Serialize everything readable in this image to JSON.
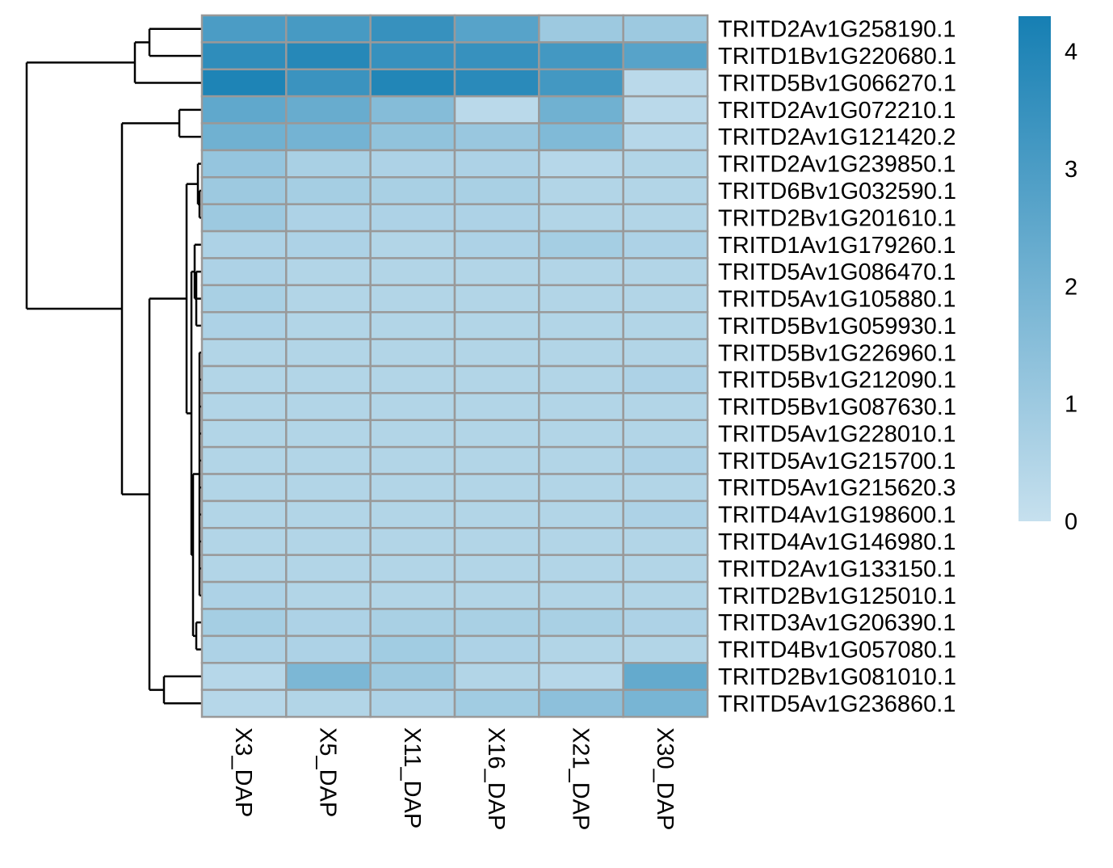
{
  "chart_data": {
    "type": "heatmap",
    "columns": [
      "X3_DAP",
      "X5_DAP",
      "X11_DAP",
      "X16_DAP",
      "X21_DAP",
      "X30_DAP"
    ],
    "rows": [
      "TRITD2Av1G258190.1",
      "TRITD1Bv1G220680.1",
      "TRITD5Bv1G066270.1",
      "TRITD2Av1G072210.1",
      "TRITD2Av1G121420.2",
      "TRITD2Av1G239850.1",
      "TRITD6Bv1G032590.1",
      "TRITD2Bv1G201610.1",
      "TRITD1Av1G179260.1",
      "TRITD5Av1G086470.1",
      "TRITD5Av1G105880.1",
      "TRITD5Bv1G059930.1",
      "TRITD5Bv1G226960.1",
      "TRITD5Bv1G212090.1",
      "TRITD5Bv1G087630.1",
      "TRITD5Av1G228010.1",
      "TRITD5Av1G215700.1",
      "TRITD5Av1G215620.3",
      "TRITD4Av1G198600.1",
      "TRITD4Av1G146980.1",
      "TRITD2Av1G133150.1",
      "TRITD2Bv1G125010.1",
      "TRITD3Av1G206390.1",
      "TRITD4Bv1G057080.1",
      "TRITD2Bv1G081010.1",
      "TRITD5Av1G236860.1"
    ],
    "values": [
      [
        3.0,
        3.1,
        3.5,
        2.7,
        1.0,
        1.0
      ],
      [
        3.7,
        3.9,
        3.5,
        3.5,
        3.2,
        2.7
      ],
      [
        4.1,
        3.4,
        4.0,
        3.8,
        3.2,
        0.3
      ],
      [
        2.5,
        2.3,
        1.6,
        0.3,
        2.1,
        0.3
      ],
      [
        2.1,
        2.0,
        1.3,
        1.1,
        1.7,
        0.4
      ],
      [
        1.2,
        0.7,
        0.6,
        0.6,
        0.4,
        0.5
      ],
      [
        1.0,
        0.8,
        0.7,
        0.7,
        0.5,
        0.5
      ],
      [
        1.0,
        0.6,
        0.6,
        0.6,
        0.5,
        0.5
      ],
      [
        0.6,
        0.6,
        0.5,
        0.6,
        0.8,
        0.6
      ],
      [
        0.6,
        0.5,
        0.5,
        0.5,
        0.5,
        0.5
      ],
      [
        0.7,
        0.5,
        0.5,
        0.5,
        0.5,
        0.5
      ],
      [
        0.6,
        0.5,
        0.5,
        0.5,
        0.5,
        0.5
      ],
      [
        0.5,
        0.5,
        0.5,
        0.5,
        0.5,
        0.5
      ],
      [
        0.5,
        0.5,
        0.5,
        0.5,
        0.5,
        0.6
      ],
      [
        0.5,
        0.5,
        0.5,
        0.5,
        0.5,
        0.5
      ],
      [
        0.5,
        0.5,
        0.5,
        0.5,
        0.5,
        0.5
      ],
      [
        0.5,
        0.5,
        0.5,
        0.5,
        0.5,
        0.6
      ],
      [
        0.5,
        0.5,
        0.5,
        0.5,
        0.5,
        0.5
      ],
      [
        0.5,
        0.5,
        0.5,
        0.5,
        0.5,
        0.6
      ],
      [
        0.5,
        0.5,
        0.5,
        0.5,
        0.5,
        0.5
      ],
      [
        0.5,
        0.5,
        0.5,
        0.5,
        0.5,
        0.5
      ],
      [
        0.6,
        0.5,
        0.5,
        0.5,
        0.5,
        0.5
      ],
      [
        0.8,
        0.6,
        0.7,
        0.7,
        0.7,
        0.6
      ],
      [
        0.6,
        0.6,
        0.9,
        0.6,
        0.5,
        0.5
      ],
      [
        0.4,
        1.8,
        1.0,
        0.5,
        0.4,
        2.4
      ],
      [
        0.4,
        0.5,
        0.6,
        0.9,
        1.4,
        1.9
      ]
    ],
    "colorbar": {
      "ticks": [
        0,
        1,
        2,
        3,
        4
      ],
      "vmin": 0,
      "vmax": 4.3,
      "color_low": "#c6e0ee",
      "color_high": "#167fb3"
    },
    "row_dendrogram": true,
    "cell_border_color": "#999999"
  }
}
